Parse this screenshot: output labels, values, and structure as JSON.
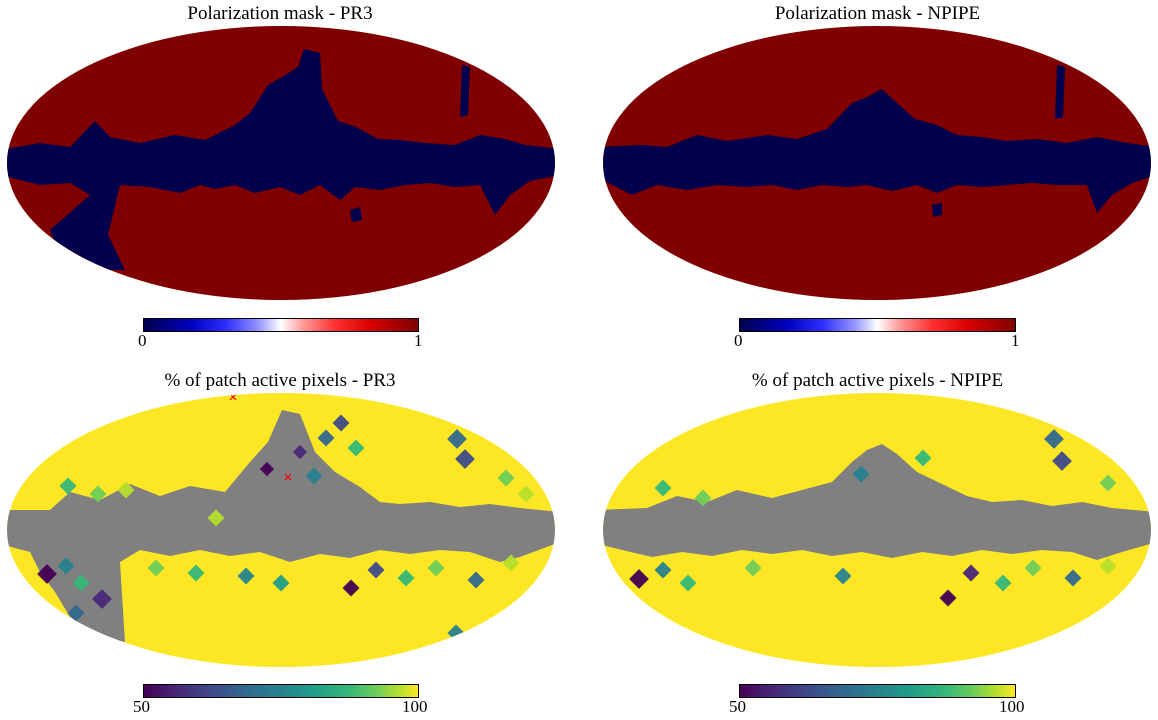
{
  "panels": {
    "pr3_mask": {
      "title": "Polarization mask - PR3",
      "colormap": "seismic",
      "colorbar_min": "0",
      "colorbar_max": "1",
      "colors": {
        "masked": "#00004c",
        "unmasked": "#800000"
      }
    },
    "npipe_mask": {
      "title": "Polarization mask - NPIPE",
      "colormap": "seismic",
      "colorbar_min": "0",
      "colorbar_max": "1",
      "colors": {
        "masked": "#00004c",
        "unmasked": "#800000"
      }
    },
    "pr3_active": {
      "title": "% of patch active pixels - PR3",
      "colormap": "viridis",
      "colorbar_min": "50",
      "colorbar_max": "100",
      "colors": {
        "bad_value": "#808080",
        "high": "#fde725"
      },
      "markers": [
        "red-x",
        "red-x"
      ]
    },
    "npipe_active": {
      "title": "% of patch active pixels - NPIPE",
      "colormap": "viridis",
      "colorbar_min": "50",
      "colorbar_max": "100",
      "colors": {
        "bad_value": "#808080",
        "high": "#fde725"
      }
    }
  }
}
